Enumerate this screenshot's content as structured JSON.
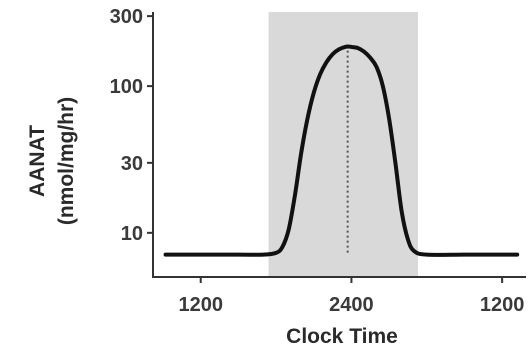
{
  "chart_data": {
    "type": "line",
    "title": "",
    "xlabel": "Clock Time",
    "ylabel": "AANAT",
    "ylabel_unit": "(nmol/mg/hr)",
    "y_scale": "log",
    "ylim": [
      5,
      320
    ],
    "xlim": [
      -3.8,
      25.9
    ],
    "x_ticks": [
      {
        "value": 0,
        "label": "1200"
      },
      {
        "value": 12,
        "label": "2400"
      },
      {
        "value": 24,
        "label": "1200"
      }
    ],
    "y_ticks": [
      {
        "value": 10,
        "label": "10"
      },
      {
        "value": 30,
        "label": "30"
      },
      {
        "value": 100,
        "label": "100"
      },
      {
        "value": 300,
        "label": "300"
      }
    ],
    "shaded_region": {
      "x_start": 5.4,
      "x_end": 17.3,
      "color": "#d9d9d9"
    },
    "peak_marker": {
      "x": 11.7,
      "style": "dotted"
    },
    "series": [
      {
        "color": "#111111",
        "points": [
          [
            -2.8,
            7.1
          ],
          [
            0,
            7.1
          ],
          [
            3,
            7.1
          ],
          [
            5,
            7.1
          ],
          [
            6,
            7.3
          ],
          [
            6.5,
            8
          ],
          [
            7,
            10.5
          ],
          [
            7.5,
            18
          ],
          [
            8,
            35
          ],
          [
            8.5,
            60
          ],
          [
            9,
            90
          ],
          [
            9.5,
            120
          ],
          [
            10,
            145
          ],
          [
            10.5,
            165
          ],
          [
            11,
            178
          ],
          [
            11.5,
            185
          ],
          [
            11.8,
            186
          ],
          [
            12,
            185
          ],
          [
            12.5,
            182
          ],
          [
            13,
            172
          ],
          [
            13.5,
            156
          ],
          [
            14,
            135
          ],
          [
            14.5,
            100
          ],
          [
            15,
            60
          ],
          [
            15.5,
            30
          ],
          [
            16,
            14
          ],
          [
            16.5,
            9
          ],
          [
            17,
            7.5
          ],
          [
            18,
            7.1
          ],
          [
            21,
            7.1
          ],
          [
            24,
            7.1
          ],
          [
            25.2,
            7.1
          ]
        ]
      }
    ]
  }
}
